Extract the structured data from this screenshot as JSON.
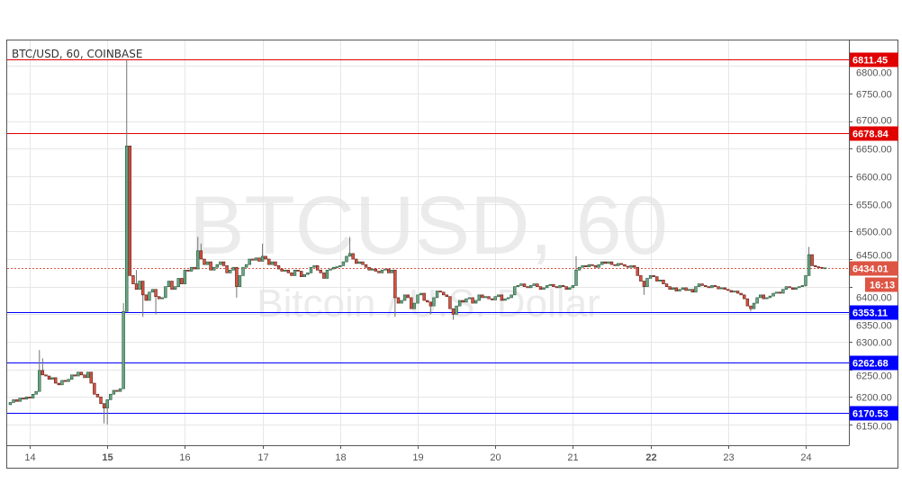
{
  "chart_data": {
    "type": "candlestick",
    "title": "BTC/USD, 60, COINBASE",
    "watermark": {
      "symbol": "BTCUSD, 60",
      "description": "Bitcoin / U.S. Dollar"
    },
    "ylim": [
      6110,
      6820
    ],
    "y_ticks": [
      6150,
      6200,
      6250,
      6300,
      6350,
      6400,
      6450,
      6500,
      6550,
      6600,
      6650,
      6700,
      6750,
      6800
    ],
    "x_ticks": [
      "14",
      "15",
      "16",
      "17",
      "18",
      "19",
      "20",
      "21",
      "22",
      "23",
      "24"
    ],
    "x_tick_days": [
      14,
      15,
      16,
      17,
      18,
      19,
      20,
      21,
      22,
      23,
      24
    ],
    "bold_x_ticks": [
      "15",
      "22"
    ],
    "grid": true,
    "interval": "60",
    "first_candle": {
      "day": 13,
      "hour": 18
    },
    "closes": [
      6190,
      6195,
      6192,
      6198,
      6196,
      6200,
      6198,
      6205,
      6210,
      6248,
      6240,
      6238,
      6232,
      6235,
      6225,
      6222,
      6230,
      6228,
      6232,
      6240,
      6238,
      6245,
      6240,
      6235,
      6245,
      6225,
      6205,
      6200,
      6188,
      6180,
      6195,
      6205,
      6212,
      6210,
      6215,
      6355,
      6655,
      6420,
      6405,
      6395,
      6410,
      6385,
      6375,
      6390,
      6395,
      6382,
      6378,
      6380,
      6400,
      6410,
      6395,
      6400,
      6415,
      6405,
      6430,
      6428,
      6435,
      6432,
      6465,
      6450,
      6440,
      6445,
      6430,
      6435,
      6440,
      6445,
      6438,
      6425,
      6430,
      6435,
      6400,
      6420,
      6435,
      6440,
      6450,
      6448,
      6452,
      6446,
      6455,
      6450,
      6440,
      6445,
      6438,
      6432,
      6428,
      6430,
      6425,
      6420,
      6430,
      6428,
      6418,
      6422,
      6425,
      6435,
      6438,
      6430,
      6425,
      6415,
      6430,
      6432,
      6435,
      6436,
      6438,
      6445,
      6455,
      6460,
      6450,
      6442,
      6445,
      6440,
      6435,
      6430,
      6432,
      6428,
      6425,
      6430,
      6432,
      6425,
      6430,
      6380,
      6370,
      6375,
      6385,
      6380,
      6360,
      6370,
      6385,
      6388,
      6375,
      6372,
      6365,
      6380,
      6392,
      6390,
      6385,
      6382,
      6360,
      6350,
      6365,
      6375,
      6372,
      6378,
      6380,
      6370,
      6375,
      6385,
      6380,
      6382,
      6378,
      6376,
      6382,
      6385,
      6375,
      6378,
      6380,
      6385,
      6400,
      6402,
      6405,
      6400,
      6398,
      6402,
      6405,
      6400,
      6395,
      6398,
      6402,
      6404,
      6400,
      6398,
      6402,
      6400,
      6395,
      6398,
      6402,
      6430,
      6435,
      6438,
      6436,
      6440,
      6438,
      6435,
      6440,
      6445,
      6442,
      6445,
      6440,
      6438,
      6442,
      6440,
      6437,
      6435,
      6438,
      6435,
      6420,
      6410,
      6400,
      6415,
      6420,
      6418,
      6410,
      6412,
      6405,
      6400,
      6395,
      6398,
      6392,
      6395,
      6398,
      6393,
      6395,
      6390,
      6400,
      6405,
      6402,
      6400,
      6398,
      6402,
      6400,
      6396,
      6398,
      6395,
      6393,
      6390,
      6392,
      6388,
      6385,
      6378,
      6365,
      6360,
      6370,
      6380,
      6385,
      6378,
      6380,
      6383,
      6388,
      6390,
      6388,
      6395,
      6400,
      6398,
      6395,
      6398,
      6400,
      6402,
      6420,
      6458,
      6438,
      6436,
      6435,
      6434,
      6434.01
    ],
    "notable_highs": {
      "14-03": 6285,
      "14-04": 6270,
      "15-05": 6370,
      "15-06": 6811.45,
      "15-09": 6430,
      "16-04": 6490,
      "16-05": 6478,
      "17-00": 6478,
      "18-03": 6490,
      "21-01": 6455,
      "24-01": 6472
    },
    "notable_lows": {
      "14-23": 6152,
      "15-00": 6150,
      "15-11": 6345,
      "15-15": 6350,
      "16-16": 6380,
      "18-17": 6345,
      "19-11": 6340,
      "19-04": 6350,
      "21-22": 6385,
      "23-07": 6355,
      "24-00": 6400
    },
    "horizontal_levels": [
      {
        "value": "6811.45",
        "price": 6811.45,
        "color": "#e00000"
      },
      {
        "value": "6678.84",
        "price": 6678.84,
        "color": "#e00000"
      },
      {
        "value": "6353.11",
        "price": 6353.11,
        "color": "#0000ff"
      },
      {
        "value": "6262.68",
        "price": 6262.68,
        "color": "#0000ff"
      },
      {
        "value": "6170.53",
        "price": 6170.53,
        "color": "#0000ff"
      }
    ],
    "last_price": {
      "value": "6434.01",
      "price": 6434.01,
      "countdown": "16:13",
      "color": "#dd5544"
    },
    "colors": {
      "up_fill": "#6ba583",
      "up_border": "#225437",
      "down_fill": "#d75442",
      "down_border": "#5b1a13",
      "wick": "#737375",
      "grid": "#e6e6e6"
    }
  }
}
